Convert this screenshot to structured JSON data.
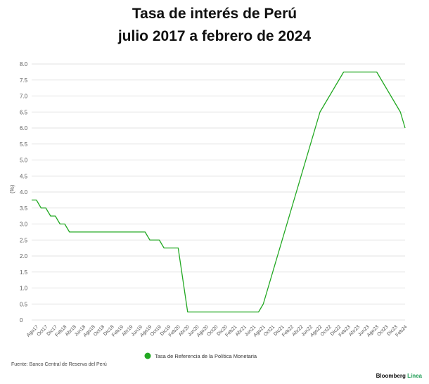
{
  "title_line1": "Tasa de interés de Perú",
  "title_line2": "julio 2017 a febrero de 2024",
  "source": "Fuente: Banco Central de Reserva del Perú",
  "brand": {
    "name": "Bloomberg",
    "accent": "Línea",
    "accent_color": "#1f9d55"
  },
  "chart_data": {
    "type": "line",
    "title": "Tasa de interés de Perú julio 2017 a febrero de 2024",
    "xlabel": "",
    "ylabel": "(%)",
    "ylim": [
      0,
      8.0
    ],
    "yticks": [
      "0",
      "0.5",
      "1.0",
      "1.5",
      "2.0",
      "2.5",
      "3.0",
      "3.5",
      "4.0",
      "4.5",
      "5.0",
      "5.5",
      "6.0",
      "6.5",
      "7.0",
      "7.5",
      "8.0"
    ],
    "xticks": [
      "Ago17",
      "Oct17",
      "Dic17",
      "Feb18",
      "Abr18",
      "Jun18",
      "Ago18",
      "Oct18",
      "Dic18",
      "Feb19",
      "Abr19",
      "Jun19",
      "Ago19",
      "Oct19",
      "Dic19",
      "Feb20",
      "Abr20",
      "Jun20",
      "Ago20",
      "Oct20",
      "Dic20",
      "Feb21",
      "Abr21",
      "Jun21",
      "Ago21",
      "Oct21",
      "Dic21",
      "Feb22",
      "Abr22",
      "Jun22",
      "Ago22",
      "Oct22",
      "Dic22",
      "Feb23",
      "Abr23",
      "Jun23",
      "Ago23",
      "Oct23",
      "Dic23",
      "Feb24"
    ],
    "grid": true,
    "legend_position": "bottom",
    "series": [
      {
        "name": "Tasa de Referencia de la Política Monetaria",
        "color": "#22a822",
        "points": [
          [
            "2017-07",
            3.75
          ],
          [
            "2017-08",
            3.75
          ],
          [
            "2017-09",
            3.5
          ],
          [
            "2017-10",
            3.5
          ],
          [
            "2017-11",
            3.25
          ],
          [
            "2017-12",
            3.25
          ],
          [
            "2018-01",
            3.0
          ],
          [
            "2018-02",
            3.0
          ],
          [
            "2018-03",
            2.75
          ],
          [
            "2018-04",
            2.75
          ],
          [
            "2018-05",
            2.75
          ],
          [
            "2018-06",
            2.75
          ],
          [
            "2018-07",
            2.75
          ],
          [
            "2018-08",
            2.75
          ],
          [
            "2018-09",
            2.75
          ],
          [
            "2018-10",
            2.75
          ],
          [
            "2018-11",
            2.75
          ],
          [
            "2018-12",
            2.75
          ],
          [
            "2019-01",
            2.75
          ],
          [
            "2019-02",
            2.75
          ],
          [
            "2019-03",
            2.75
          ],
          [
            "2019-04",
            2.75
          ],
          [
            "2019-05",
            2.75
          ],
          [
            "2019-06",
            2.75
          ],
          [
            "2019-07",
            2.75
          ],
          [
            "2019-08",
            2.5
          ],
          [
            "2019-09",
            2.5
          ],
          [
            "2019-10",
            2.5
          ],
          [
            "2019-11",
            2.25
          ],
          [
            "2019-12",
            2.25
          ],
          [
            "2020-01",
            2.25
          ],
          [
            "2020-02",
            2.25
          ],
          [
            "2020-03",
            1.25
          ],
          [
            "2020-04",
            0.25
          ],
          [
            "2020-05",
            0.25
          ],
          [
            "2020-06",
            0.25
          ],
          [
            "2020-07",
            0.25
          ],
          [
            "2020-08",
            0.25
          ],
          [
            "2020-09",
            0.25
          ],
          [
            "2020-10",
            0.25
          ],
          [
            "2020-11",
            0.25
          ],
          [
            "2020-12",
            0.25
          ],
          [
            "2021-01",
            0.25
          ],
          [
            "2021-02",
            0.25
          ],
          [
            "2021-03",
            0.25
          ],
          [
            "2021-04",
            0.25
          ],
          [
            "2021-05",
            0.25
          ],
          [
            "2021-06",
            0.25
          ],
          [
            "2021-07",
            0.25
          ],
          [
            "2021-08",
            0.5
          ],
          [
            "2021-09",
            1.0
          ],
          [
            "2021-10",
            1.5
          ],
          [
            "2021-11",
            2.0
          ],
          [
            "2021-12",
            2.5
          ],
          [
            "2022-01",
            3.0
          ],
          [
            "2022-02",
            3.5
          ],
          [
            "2022-03",
            4.0
          ],
          [
            "2022-04",
            4.5
          ],
          [
            "2022-05",
            5.0
          ],
          [
            "2022-06",
            5.5
          ],
          [
            "2022-07",
            6.0
          ],
          [
            "2022-08",
            6.5
          ],
          [
            "2022-09",
            6.75
          ],
          [
            "2022-10",
            7.0
          ],
          [
            "2022-11",
            7.25
          ],
          [
            "2022-12",
            7.5
          ],
          [
            "2023-01",
            7.75
          ],
          [
            "2023-02",
            7.75
          ],
          [
            "2023-03",
            7.75
          ],
          [
            "2023-04",
            7.75
          ],
          [
            "2023-05",
            7.75
          ],
          [
            "2023-06",
            7.75
          ],
          [
            "2023-07",
            7.75
          ],
          [
            "2023-08",
            7.75
          ],
          [
            "2023-09",
            7.5
          ],
          [
            "2023-10",
            7.25
          ],
          [
            "2023-11",
            7.0
          ],
          [
            "2023-12",
            6.75
          ],
          [
            "2024-01",
            6.5
          ],
          [
            "2024-02",
            6.0
          ]
        ]
      }
    ]
  }
}
